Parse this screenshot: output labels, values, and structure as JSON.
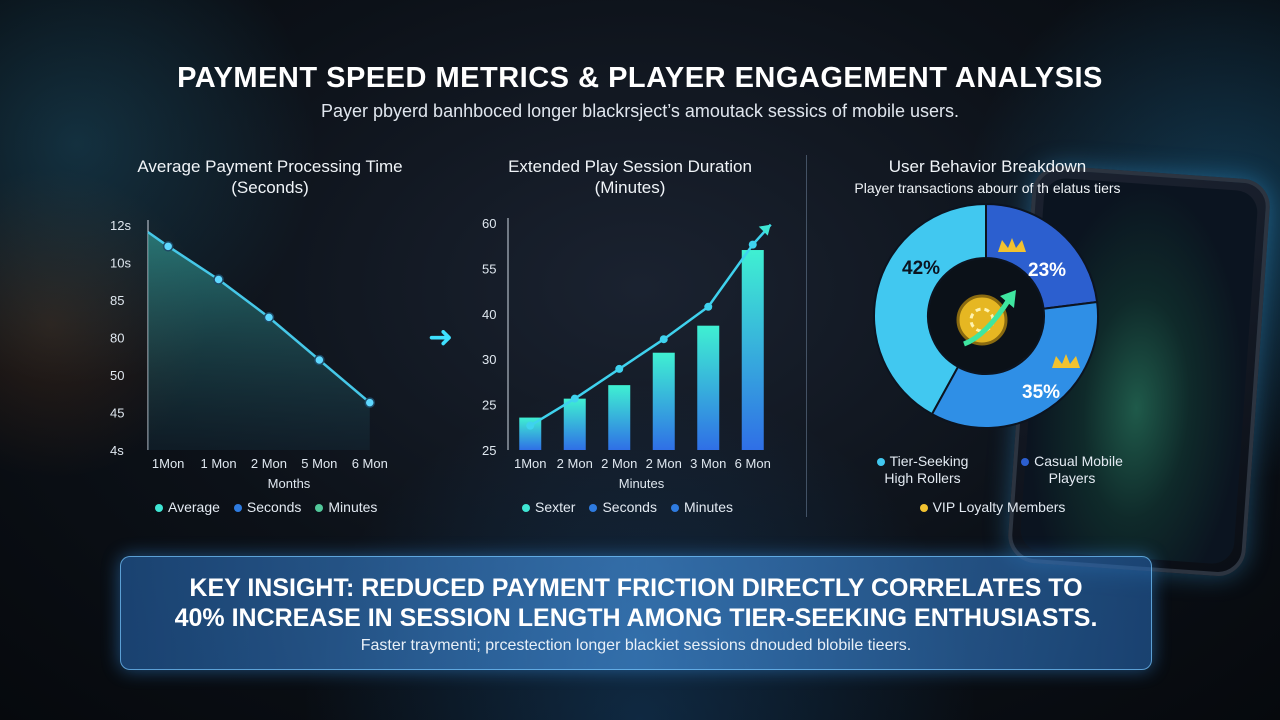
{
  "header": {
    "title": "PAYMENT SPEED METRICS & PLAYER ENGAGEMENT ANALYSIS",
    "subtitle": "Payer pbyerd banhboced longer blackrsject’s amoutack sessics of mobile users."
  },
  "colors": {
    "teal": "#3fe6d4",
    "blue": "#2e7be0",
    "cyan": "#41c8f0",
    "green": "#52c89a",
    "gold": "#f2c230",
    "accent_glow": "#3fe0ff"
  },
  "chart_data": [
    {
      "type": "line",
      "title": "Average Payment Processing Time (Seconds)",
      "title_lines": [
        "Average Payment Processing Time",
        "(Seconds)"
      ],
      "xlabel": "Months",
      "ylabel": "",
      "y_tick_labels": [
        "12s",
        "10s",
        "85",
        "80",
        "50",
        "45",
        "4s"
      ],
      "categories": [
        "1Mon",
        "1 Mon",
        "2 Mon",
        "5 Mon",
        "6 Mon"
      ],
      "series": [
        {
          "name": "",
          "values": [
            11.6,
            10.2,
            8.6,
            6.8,
            5.0
          ]
        }
      ],
      "ylim": [
        3,
        12.5
      ],
      "legend": [
        "Average",
        "Seconds",
        "Minutes"
      ],
      "legend_colors": [
        "#3fe6d4",
        "#2e7be0",
        "#52c89a"
      ],
      "legend_position": "bottom",
      "grid": false
    },
    {
      "type": "bar",
      "title": "Extended Play Session Duration (Minutes)",
      "title_lines": [
        "Extended Play Session Duration",
        "(Minutes)"
      ],
      "xlabel": "Minutes",
      "ylabel": "",
      "y_tick_labels": [
        "60",
        "55",
        "40",
        "30",
        "25",
        "25"
      ],
      "categories": [
        "1Mon",
        "2 Mon",
        "2 Mon",
        "2 Mon",
        "3 Mon",
        "6 Mon"
      ],
      "values": [
        26,
        29.5,
        32,
        38,
        43,
        57
      ],
      "trend_line": [
        24.5,
        29.5,
        35,
        40.5,
        46.5,
        58
      ],
      "ylim": [
        20,
        62
      ],
      "legend": [
        "Sexter",
        "Seconds",
        "Minutes"
      ],
      "legend_colors": [
        "#3fe6d4",
        "#2e7be0",
        "#2e7be0"
      ],
      "legend_position": "bottom",
      "grid": false
    },
    {
      "type": "pie",
      "title": "User Behavior Breakdown",
      "subtitle": "Player transactions abourr of th elatus tiers",
      "slices": [
        {
          "label": "Tier-Seeking High Rollers",
          "value": 42,
          "display": "42%",
          "color": "#41c8f0"
        },
        {
          "label": "Casual Mobile Players",
          "value": 23,
          "display": "23%",
          "color": "#2c5fcf"
        },
        {
          "label": "VIP Loyalty Members",
          "value": 35,
          "display": "35%",
          "color": "#2f8fe6"
        }
      ],
      "legend": [
        {
          "label": "Tier-Seeking\nHigh Rollers",
          "color": "#41c8f0"
        },
        {
          "label": "Casual Mobile\nPlayers",
          "color": "#2c5fcf"
        },
        {
          "label": "VIP Loyalty Members",
          "color": "#f2c230"
        }
      ],
      "legend_position": "bottom"
    }
  ],
  "insight": {
    "headline_line1": "KEY INSIGHT: REDUCED PAYMENT FRICTION DIRECTLY CORRELATES TO",
    "headline_line2": "40% INCREASE IN SESSION LENGTH AMONG TIER-SEEKING ENTHUSIASTS.",
    "body": "Faster traymenti; prcestection longer blackiet sessions dnouded blobile tieers."
  },
  "icons": {
    "flow_arrow": "right-arrow-icon",
    "pie_center": "chips-growth-icon",
    "crown": "crown-icon",
    "phone": "mobile-phone-icon"
  }
}
